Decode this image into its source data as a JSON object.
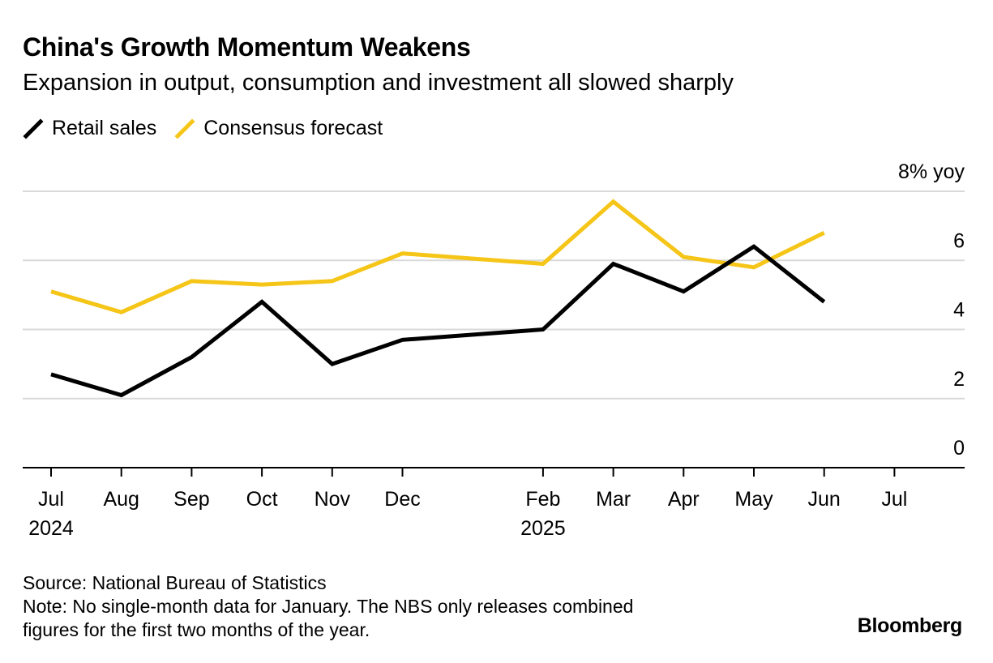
{
  "title": "China's Growth Momentum Weakens",
  "subtitle": "Expansion in output, consumption and investment all slowed sharply",
  "brand": "Bloomberg",
  "source": "Source: National Bureau of Statistics",
  "note_line1": "Note: No single-month data for January. The NBS only releases combined",
  "note_line2": "figures for the first two months of the year.",
  "colors": {
    "retail": "#000000",
    "consensus": "#f5c518",
    "grid": "#d9d9d9"
  },
  "chart_data": {
    "type": "line",
    "ylabel": "% yoy",
    "ylim": [
      0,
      8
    ],
    "yticks": [
      {
        "value": 8,
        "label": "8% yoy"
      },
      {
        "value": 6,
        "label": "6"
      },
      {
        "value": 4,
        "label": "4"
      },
      {
        "value": 2,
        "label": "2"
      },
      {
        "value": 0,
        "label": "0"
      }
    ],
    "xaxis": [
      {
        "date": "2024-07",
        "label": "Jul",
        "year": "2024"
      },
      {
        "date": "2024-08",
        "label": "Aug",
        "year": ""
      },
      {
        "date": "2024-09",
        "label": "Sep",
        "year": ""
      },
      {
        "date": "2024-10",
        "label": "Oct",
        "year": ""
      },
      {
        "date": "2024-11",
        "label": "Nov",
        "year": ""
      },
      {
        "date": "2024-12",
        "label": "Dec",
        "year": ""
      },
      {
        "date": "2025-02",
        "label": "Feb",
        "year": "2025"
      },
      {
        "date": "2025-03",
        "label": "Mar",
        "year": ""
      },
      {
        "date": "2025-04",
        "label": "Apr",
        "year": ""
      },
      {
        "date": "2025-05",
        "label": "May",
        "year": ""
      },
      {
        "date": "2025-06",
        "label": "Jun",
        "year": ""
      },
      {
        "date": "2025-07",
        "label": "Jul",
        "year": ""
      }
    ],
    "series": [
      {
        "name": "Retail sales",
        "color": "#000000",
        "points": [
          {
            "x": "2024-07",
            "y": 2.7
          },
          {
            "x": "2024-08",
            "y": 2.1
          },
          {
            "x": "2024-09",
            "y": 3.2
          },
          {
            "x": "2024-10",
            "y": 4.8
          },
          {
            "x": "2024-11",
            "y": 3.0
          },
          {
            "x": "2024-12",
            "y": 3.7
          },
          {
            "x": "2025-02",
            "y": 4.0
          },
          {
            "x": "2025-03",
            "y": 5.9
          },
          {
            "x": "2025-04",
            "y": 5.1
          },
          {
            "x": "2025-05",
            "y": 6.4
          },
          {
            "x": "2025-06",
            "y": 4.8
          }
        ]
      },
      {
        "name": "Consensus forecast",
        "color": "#f5c518",
        "points": [
          {
            "x": "2024-07",
            "y": 5.1
          },
          {
            "x": "2024-08",
            "y": 4.5
          },
          {
            "x": "2024-09",
            "y": 5.4
          },
          {
            "x": "2024-10",
            "y": 5.3
          },
          {
            "x": "2024-11",
            "y": 5.4
          },
          {
            "x": "2024-12",
            "y": 6.2
          },
          {
            "x": "2025-02",
            "y": 5.9
          },
          {
            "x": "2025-03",
            "y": 7.7
          },
          {
            "x": "2025-04",
            "y": 6.1
          },
          {
            "x": "2025-05",
            "y": 5.8
          },
          {
            "x": "2025-06",
            "y": 6.8
          }
        ]
      }
    ]
  }
}
